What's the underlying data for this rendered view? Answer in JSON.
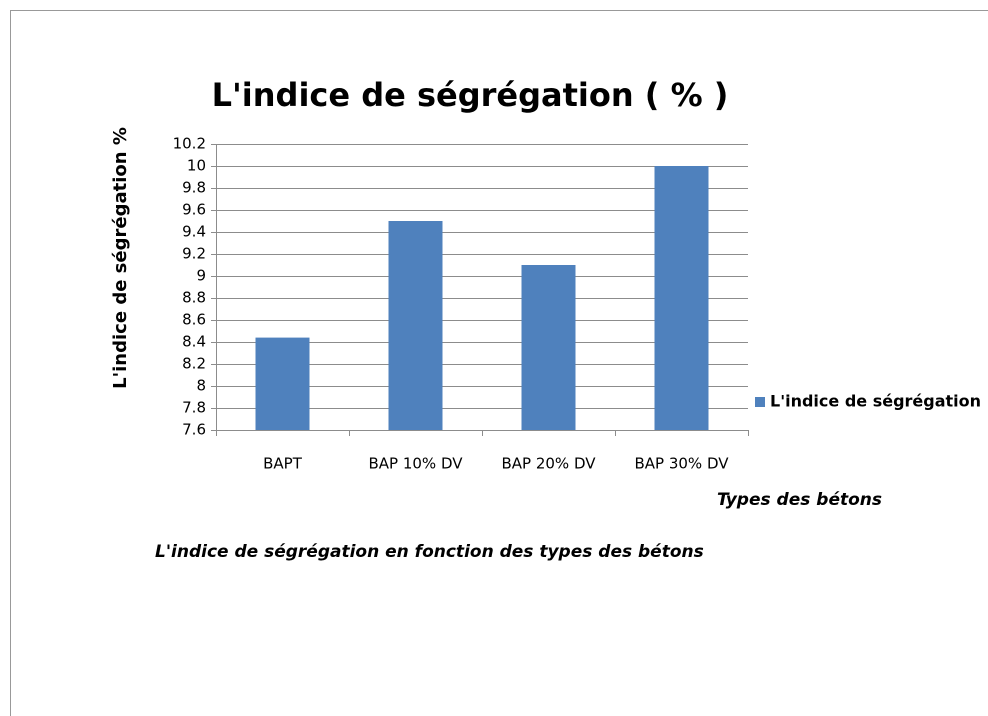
{
  "chart_data": {
    "type": "bar",
    "title": "L'indice de ségrégation ( % )",
    "y_label": "L'indice de ségrégation %",
    "x_label": "Types des bétons",
    "annotations": [
      "L'indice de ségrégation en fonction des types des bétons"
    ],
    "categories": [
      "BAPT",
      "BAP 10% DV",
      "BAP 20% DV",
      "BAP 30% DV"
    ],
    "series": [
      {
        "name": "L'indice de ségrégation",
        "color": "#4f81bd",
        "values": [
          8.44,
          9.5,
          9.1,
          10
        ]
      }
    ],
    "ylim": [
      7.6,
      10.2
    ],
    "yticks": [
      7.6,
      7.8,
      8,
      8.2,
      8.4,
      8.6,
      8.8,
      9,
      9.2,
      9.4,
      9.6,
      9.8,
      10,
      10.2
    ],
    "grid": true,
    "legend": "right"
  }
}
